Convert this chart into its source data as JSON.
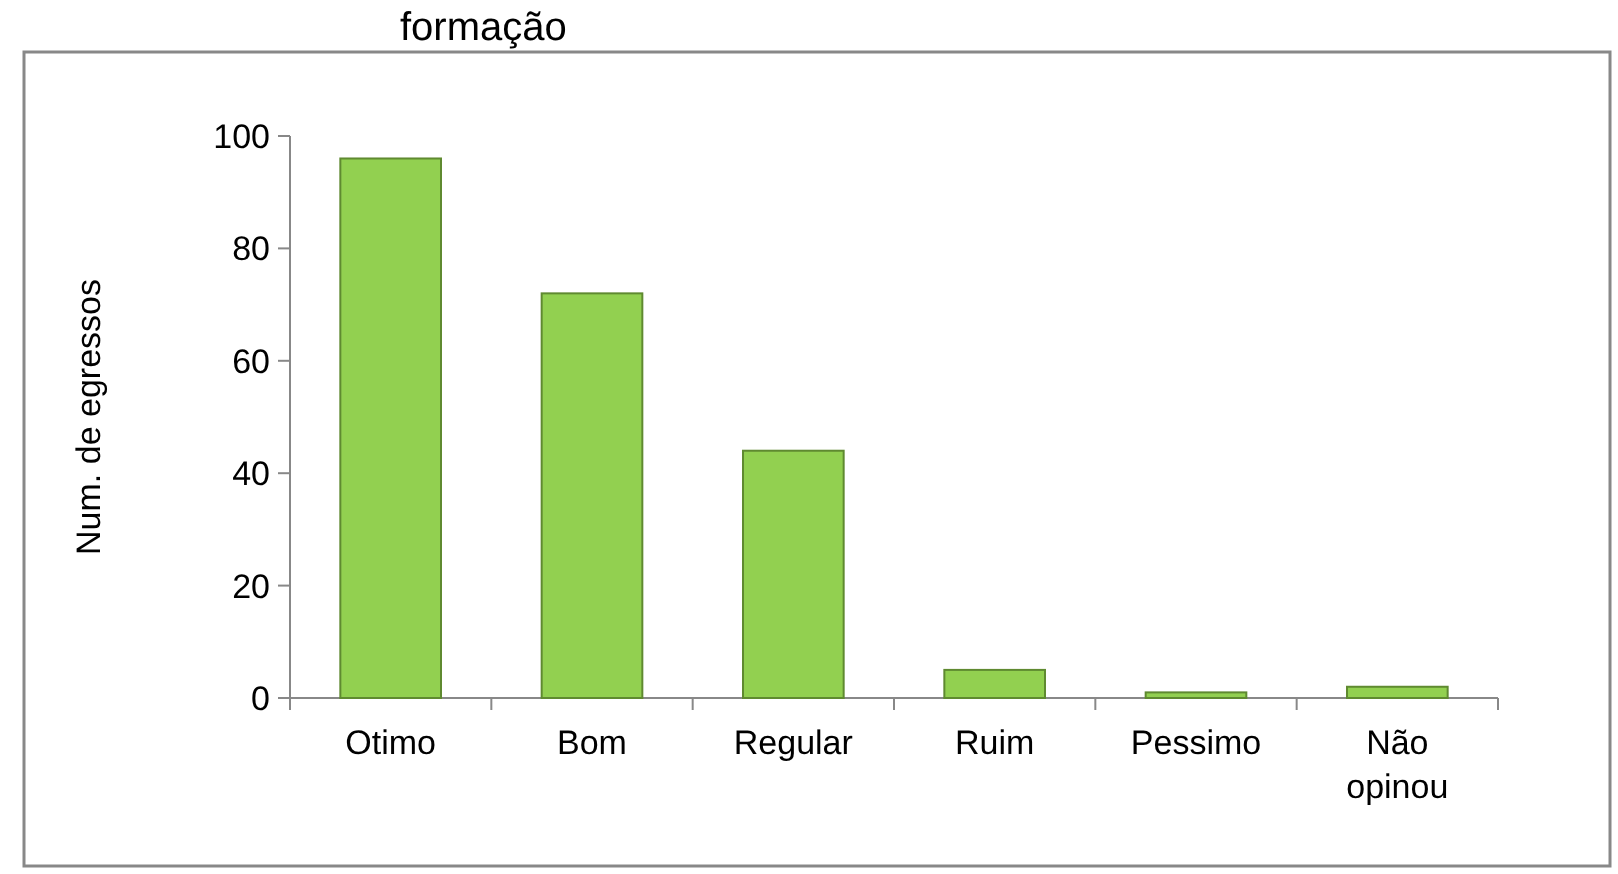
{
  "chart_data": {
    "type": "bar",
    "title": "formação",
    "ylabel": "Num. de egressos",
    "categories": [
      "Otimo",
      "Bom",
      "Regular",
      "Ruim",
      "Pessimo",
      "Não opinou"
    ],
    "values": [
      96,
      72,
      44,
      5,
      1,
      2
    ],
    "color": "#92d050",
    "ylim": [
      0,
      100
    ],
    "yticks": [
      0,
      20,
      40,
      60,
      80,
      100
    ]
  }
}
